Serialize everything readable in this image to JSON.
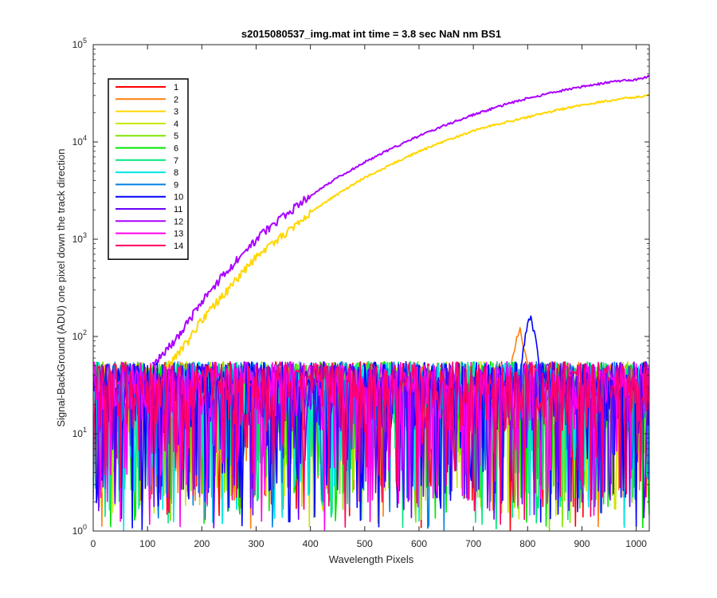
{
  "chart_data": {
    "type": "line",
    "title": "s2015080537_img.mat int time = 3.8 sec  NaN nm BS1",
    "xlabel": "Wavelength Pixels",
    "ylabel": "Signal-BackGround (ADU) one pixel down the track direction",
    "xlim": [
      0,
      1024
    ],
    "ylim": [
      1,
      100000
    ],
    "yscale": "log",
    "grid": false,
    "legend_position": "top-left",
    "x_ticks": [
      0,
      100,
      200,
      300,
      400,
      500,
      600,
      700,
      800,
      900,
      1000
    ],
    "y_ticks": [
      {
        "value": 1,
        "base": "10",
        "exp": "0"
      },
      {
        "value": 10,
        "base": "10",
        "exp": "1"
      },
      {
        "value": 100,
        "base": "10",
        "exp": "2"
      },
      {
        "value": 1000,
        "base": "10",
        "exp": "3"
      },
      {
        "value": 10000,
        "base": "10",
        "exp": "4"
      },
      {
        "value": 100000,
        "base": "10",
        "exp": "5"
      }
    ],
    "series": [
      {
        "name": "1",
        "color": "#ff0000",
        "kind": "noise"
      },
      {
        "name": "2",
        "color": "#ff7f0e",
        "kind": "noise",
        "peak": {
          "x": 785,
          "y": 130
        }
      },
      {
        "name": "3",
        "color": "#ffd700",
        "kind": "signal",
        "points": [
          [
            135,
            50
          ],
          [
            150,
            60
          ],
          [
            175,
            90
          ],
          [
            200,
            150
          ],
          [
            250,
            310
          ],
          [
            300,
            650
          ],
          [
            350,
            1100
          ],
          [
            400,
            1900
          ],
          [
            450,
            2900
          ],
          [
            500,
            4300
          ],
          [
            550,
            5900
          ],
          [
            600,
            8000
          ],
          [
            650,
            10300
          ],
          [
            700,
            13000
          ],
          [
            750,
            15500
          ],
          [
            800,
            18000
          ],
          [
            850,
            21000
          ],
          [
            900,
            24000
          ],
          [
            950,
            26500
          ],
          [
            1000,
            29000
          ],
          [
            1024,
            30000
          ]
        ]
      },
      {
        "name": "4",
        "color": "#c8e600",
        "kind": "noise"
      },
      {
        "name": "5",
        "color": "#7fe600",
        "kind": "noise"
      },
      {
        "name": "6",
        "color": "#00e600",
        "kind": "noise"
      },
      {
        "name": "7",
        "color": "#00e67f",
        "kind": "noise"
      },
      {
        "name": "8",
        "color": "#00e6e6",
        "kind": "noise"
      },
      {
        "name": "9",
        "color": "#0080e6",
        "kind": "noise"
      },
      {
        "name": "10",
        "color": "#0000ff",
        "kind": "noise",
        "peak": {
          "x": 805,
          "y": 180
        }
      },
      {
        "name": "11",
        "color": "#6a00ff",
        "kind": "noise"
      },
      {
        "name": "12",
        "color": "#aa00ff",
        "kind": "signal",
        "points": [
          [
            110,
            50
          ],
          [
            125,
            65
          ],
          [
            150,
            90
          ],
          [
            175,
            140
          ],
          [
            200,
            230
          ],
          [
            250,
            500
          ],
          [
            300,
            1000
          ],
          [
            350,
            1700
          ],
          [
            400,
            2800
          ],
          [
            450,
            4300
          ],
          [
            500,
            6200
          ],
          [
            550,
            8600
          ],
          [
            600,
            11500
          ],
          [
            650,
            15000
          ],
          [
            700,
            19000
          ],
          [
            750,
            23500
          ],
          [
            800,
            28000
          ],
          [
            850,
            32500
          ],
          [
            900,
            37000
          ],
          [
            950,
            41000
          ],
          [
            1000,
            44000
          ],
          [
            1024,
            47000
          ]
        ]
      },
      {
        "name": "13",
        "color": "#ff00ee",
        "kind": "noise"
      },
      {
        "name": "14",
        "color": "#ff0066",
        "kind": "noise"
      }
    ]
  }
}
